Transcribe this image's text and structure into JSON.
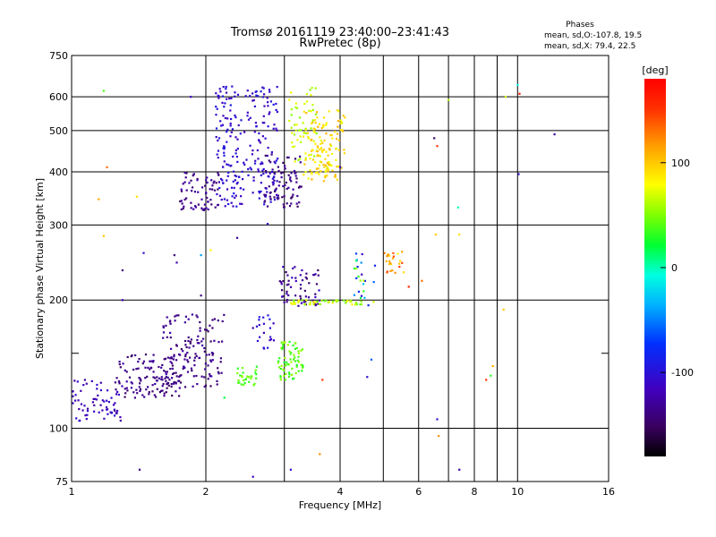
{
  "chart_data": {
    "type": "scatter",
    "title": "Tromsø 20161119 23:40:00–23:41:43",
    "subtitle": "RwPretec (8p)",
    "xlabel": "Frequency [MHz]",
    "ylabel": "Stationary phase Virtual Height [km]",
    "x_scale": "log",
    "y_scale": "log",
    "xlim": [
      1,
      16
    ],
    "ylim": [
      75,
      750
    ],
    "x_ticks": [
      1,
      2,
      4,
      6,
      8,
      10,
      16
    ],
    "x_minor_ticks": [
      3,
      5,
      7,
      9
    ],
    "y_ticks": [
      75,
      100,
      200,
      300,
      400,
      500,
      600,
      750
    ],
    "y_minor_ticks": [
      150
    ],
    "grid": true,
    "phases_box": {
      "title": "Phases",
      "line_o": "mean, sd,O:-107.8, 19.5",
      "line_x": "mean, sd,X:  79.4, 22.5"
    },
    "colorbar": {
      "label": "[deg]",
      "range": [
        -180,
        180
      ],
      "ticks": [
        100,
        0,
        -100
      ],
      "colormap": "rainbow"
    },
    "clusters": [
      {
        "f": [
          1.0,
          1.3
        ],
        "h": [
          104,
          130
        ],
        "phase": [
          -130,
          -100
        ],
        "n": 70
      },
      {
        "f": [
          1.25,
          1.75
        ],
        "h": [
          118,
          150
        ],
        "phase": [
          -150,
          -125
        ],
        "n": 120
      },
      {
        "f": [
          1.6,
          2.2
        ],
        "h": [
          125,
          185
        ],
        "phase": [
          -150,
          -125
        ],
        "n": 140
      },
      {
        "f": [
          2.35,
          2.6
        ],
        "h": [
          125,
          140
        ],
        "phase": [
          25,
          55
        ],
        "n": 30
      },
      {
        "f": [
          2.6,
          2.85
        ],
        "h": [
          150,
          185
        ],
        "phase": [
          -120,
          -90
        ],
        "n": 20
      },
      {
        "f": [
          2.9,
          3.3
        ],
        "h": [
          130,
          160
        ],
        "phase": [
          25,
          60
        ],
        "n": 70
      },
      {
        "f": [
          2.9,
          3.6
        ],
        "h": [
          193,
          240
        ],
        "phase": [
          -150,
          -110
        ],
        "n": 60
      },
      {
        "f": [
          3.1,
          4.5
        ],
        "h": [
          195,
          200
        ],
        "phase": [
          40,
          90
        ],
        "n": 50
      },
      {
        "f": [
          4.3,
          4.8
        ],
        "h": [
          193,
          260
        ],
        "phase": [
          -120,
          70
        ],
        "n": 25
      },
      {
        "f": [
          5.0,
          5.6
        ],
        "h": [
          230,
          260
        ],
        "phase": [
          80,
          150
        ],
        "n": 25
      },
      {
        "f": [
          1.75,
          2.15
        ],
        "h": [
          320,
          400
        ],
        "phase": [
          -150,
          -120
        ],
        "n": 70
      },
      {
        "f": [
          2.1,
          2.9
        ],
        "h": [
          330,
          640
        ],
        "phase": [
          -120,
          -90
        ],
        "n": 230
      },
      {
        "f": [
          2.7,
          3.3
        ],
        "h": [
          330,
          440
        ],
        "phase": [
          -150,
          -125
        ],
        "n": 80
      },
      {
        "f": [
          3.05,
          3.55
        ],
        "h": [
          420,
          640
        ],
        "phase": [
          50,
          80
        ],
        "n": 50
      },
      {
        "f": [
          3.3,
          4.1
        ],
        "h": [
          380,
          560
        ],
        "phase": [
          70,
          110
        ],
        "n": 140
      }
    ],
    "sparse_points": [
      {
        "f": 1.18,
        "h": 620,
        "phase": 40
      },
      {
        "f": 1.85,
        "h": 600,
        "phase": -110
      },
      {
        "f": 1.2,
        "h": 410,
        "phase": 130
      },
      {
        "f": 1.15,
        "h": 345,
        "phase": 110
      },
      {
        "f": 1.4,
        "h": 350,
        "phase": 90
      },
      {
        "f": 1.18,
        "h": 283,
        "phase": 100
      },
      {
        "f": 1.45,
        "h": 258,
        "phase": -100
      },
      {
        "f": 1.3,
        "h": 235,
        "phase": -140
      },
      {
        "f": 1.7,
        "h": 255,
        "phase": -140
      },
      {
        "f": 1.72,
        "h": 245,
        "phase": -120
      },
      {
        "f": 2.05,
        "h": 262,
        "phase": 80
      },
      {
        "f": 1.95,
        "h": 255,
        "phase": -40
      },
      {
        "f": 2.35,
        "h": 280,
        "phase": -130
      },
      {
        "f": 2.75,
        "h": 302,
        "phase": -110
      },
      {
        "f": 1.3,
        "h": 200,
        "phase": -120
      },
      {
        "f": 1.95,
        "h": 205,
        "phase": -140
      },
      {
        "f": 2.55,
        "h": 172,
        "phase": -120
      },
      {
        "f": 2.2,
        "h": 118,
        "phase": 20
      },
      {
        "f": 1.42,
        "h": 80,
        "phase": -140
      },
      {
        "f": 2.55,
        "h": 77,
        "phase": -110
      },
      {
        "f": 3.1,
        "h": 80,
        "phase": -100
      },
      {
        "f": 3.6,
        "h": 87,
        "phase": 120
      },
      {
        "f": 3.65,
        "h": 130,
        "phase": 150
      },
      {
        "f": 4.0,
        "h": 410,
        "phase": -110
      },
      {
        "f": 4.6,
        "h": 132,
        "phase": -100
      },
      {
        "f": 4.7,
        "h": 145,
        "phase": -60
      },
      {
        "f": 6.5,
        "h": 480,
        "phase": -150
      },
      {
        "f": 6.6,
        "h": 460,
        "phase": 150
      },
      {
        "f": 7.0,
        "h": 590,
        "phase": 60
      },
      {
        "f": 7.35,
        "h": 330,
        "phase": 0
      },
      {
        "f": 6.6,
        "h": 105,
        "phase": -100
      },
      {
        "f": 6.65,
        "h": 96,
        "phase": 120
      },
      {
        "f": 7.4,
        "h": 80,
        "phase": -130
      },
      {
        "f": 8.5,
        "h": 130,
        "phase": 150
      },
      {
        "f": 8.7,
        "h": 133,
        "phase": 30
      },
      {
        "f": 8.8,
        "h": 140,
        "phase": 110
      },
      {
        "f": 9.4,
        "h": 600,
        "phase": 70
      },
      {
        "f": 10.0,
        "h": 640,
        "phase": -10
      },
      {
        "f": 10.1,
        "h": 610,
        "phase": 160
      },
      {
        "f": 10.05,
        "h": 395,
        "phase": -100
      },
      {
        "f": 12.1,
        "h": 490,
        "phase": -130
      },
      {
        "f": 9.3,
        "h": 190,
        "phase": 100
      },
      {
        "f": 6.1,
        "h": 222,
        "phase": 130
      },
      {
        "f": 5.7,
        "h": 215,
        "phase": 160
      },
      {
        "f": 6.55,
        "h": 285,
        "phase": 100
      },
      {
        "f": 7.4,
        "h": 285,
        "phase": 90
      }
    ]
  }
}
